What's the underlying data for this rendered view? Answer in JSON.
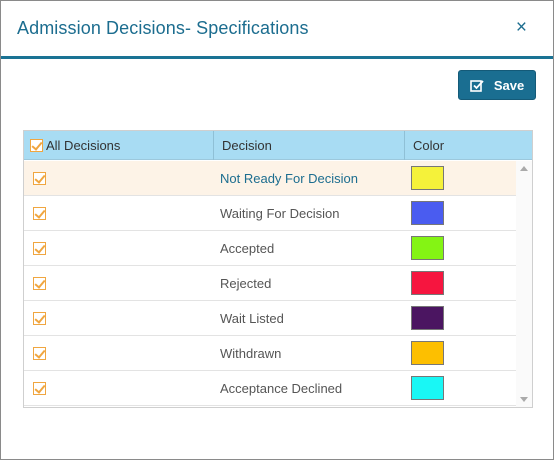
{
  "dialog": {
    "title": "Admission Decisions- Specifications",
    "close_label": "×"
  },
  "toolbar": {
    "save_label": "Save"
  },
  "table": {
    "headers": {
      "all": "All Decisions",
      "decision": "Decision",
      "color": "Color"
    },
    "rows": [
      {
        "decision": "Not Ready For Decision",
        "color": "#f5f23a",
        "checked": true,
        "active": true
      },
      {
        "decision": "Waiting For Decision",
        "color": "#4a5cf0",
        "checked": true
      },
      {
        "decision": "Accepted",
        "color": "#84f414",
        "checked": true
      },
      {
        "decision": "Rejected",
        "color": "#f6153f",
        "checked": true
      },
      {
        "decision": "Wait Listed",
        "color": "#4b1561",
        "checked": true
      },
      {
        "decision": "Withdrawn",
        "color": "#fdbf00",
        "checked": true
      },
      {
        "decision": "Acceptance Declined",
        "color": "#19f7f5",
        "checked": true
      }
    ]
  },
  "colors": {
    "accent": "#1a6e91",
    "header_bg": "#a8dcf3",
    "checkbox": "#f0a640",
    "active_row_bg": "#fdf3e7"
  }
}
